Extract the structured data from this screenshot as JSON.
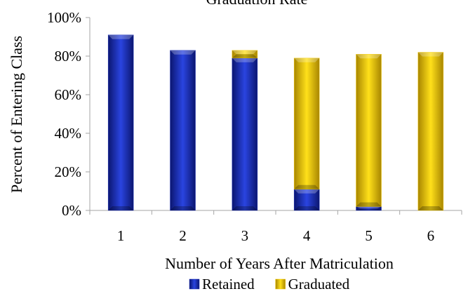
{
  "chart_data": {
    "type": "bar",
    "stacked": true,
    "title": "Graduation Rate",
    "xlabel": "Number of Years After Matriculation",
    "ylabel": "Percent of Entering Class",
    "categories": [
      "1",
      "2",
      "3",
      "4",
      "5",
      "6"
    ],
    "ylim": [
      0,
      100
    ],
    "yticks": [
      "0%",
      "20%",
      "40%",
      "60%",
      "80%",
      "100%"
    ],
    "series": [
      {
        "name": "Retained",
        "values": [
          91,
          83,
          79,
          11,
          2,
          0
        ],
        "color": "#1a2fb8"
      },
      {
        "name": "Graduated",
        "values": [
          0,
          0,
          4,
          68,
          79,
          82
        ],
        "color": "#f2c800"
      }
    ],
    "legend_position": "bottom",
    "grid": false
  }
}
